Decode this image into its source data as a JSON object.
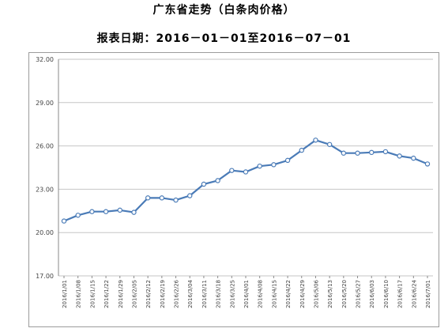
{
  "chart_data": {
    "type": "line",
    "title": "广东省走势（白条肉价格）",
    "subtitle": "报表日期：2016－01－01至2016－07－01",
    "x": [
      "2016/1/01",
      "2016/1/08",
      "2016/1/15",
      "2016/1/22",
      "2016/1/29",
      "2016/2/05",
      "2016/2/12",
      "2016/2/19",
      "2016/2/26",
      "2016/3/04",
      "2016/3/11",
      "2016/3/18",
      "2016/3/25",
      "2016/4/01",
      "2016/4/08",
      "2016/4/15",
      "2016/4/22",
      "2016/4/29",
      "2016/5/06",
      "2016/5/13",
      "2016/5/20",
      "2016/5/27",
      "2016/6/03",
      "2016/6/10",
      "2016/6/17",
      "2016/6/24",
      "2016/7/01"
    ],
    "series": [
      {
        "values": [
          20.8,
          21.2,
          21.45,
          21.45,
          21.55,
          21.4,
          22.4,
          22.4,
          22.25,
          22.55,
          23.35,
          23.6,
          24.3,
          24.2,
          24.6,
          24.7,
          25.0,
          25.7,
          26.4,
          26.1,
          25.5,
          25.5,
          25.55,
          25.6,
          25.3,
          25.15,
          24.75
        ]
      }
    ],
    "yticks": [
      "32.00",
      "29.00",
      "26.00",
      "23.00",
      "20.00",
      "17.00"
    ],
    "ylim": [
      17,
      32
    ],
    "grid": "horizontal",
    "legend": "none",
    "line_color": "#4a7bb7",
    "grid_color": "#c6c6c6"
  }
}
